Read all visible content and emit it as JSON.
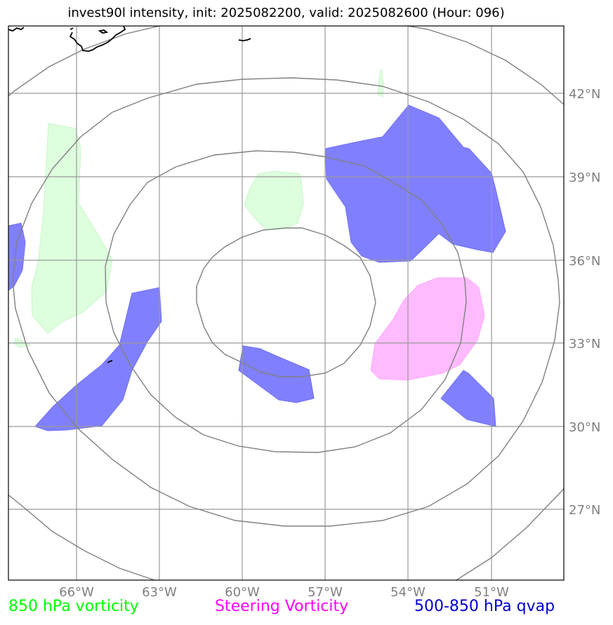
{
  "title": "invest90l intensity, init: 2025082200, valid: 2025082600 (Hour: 096)",
  "longitude_labels": [
    "66°W",
    "63°W",
    "60°W",
    "57°W",
    "54°W",
    "51°W"
  ],
  "latitude_labels": [
    "42°N",
    "39°N",
    "36°N",
    "33°N",
    "30°N",
    "27°N"
  ],
  "legend": [
    {
      "label": "850 hPa vorticity",
      "color": "#00ff00"
    },
    {
      "label": "Steering Vorticity",
      "color": "#ff00ff"
    },
    {
      "label": "500-850 hPa qvap",
      "color": "#0000cc"
    }
  ],
  "colors": {
    "vorticity_fill": "#ddffdd",
    "steering_fill": "#ffbbff",
    "qvap_fill": "#8080ff",
    "grid": "#999999",
    "rings": "#808080",
    "coast": "#000000"
  }
}
